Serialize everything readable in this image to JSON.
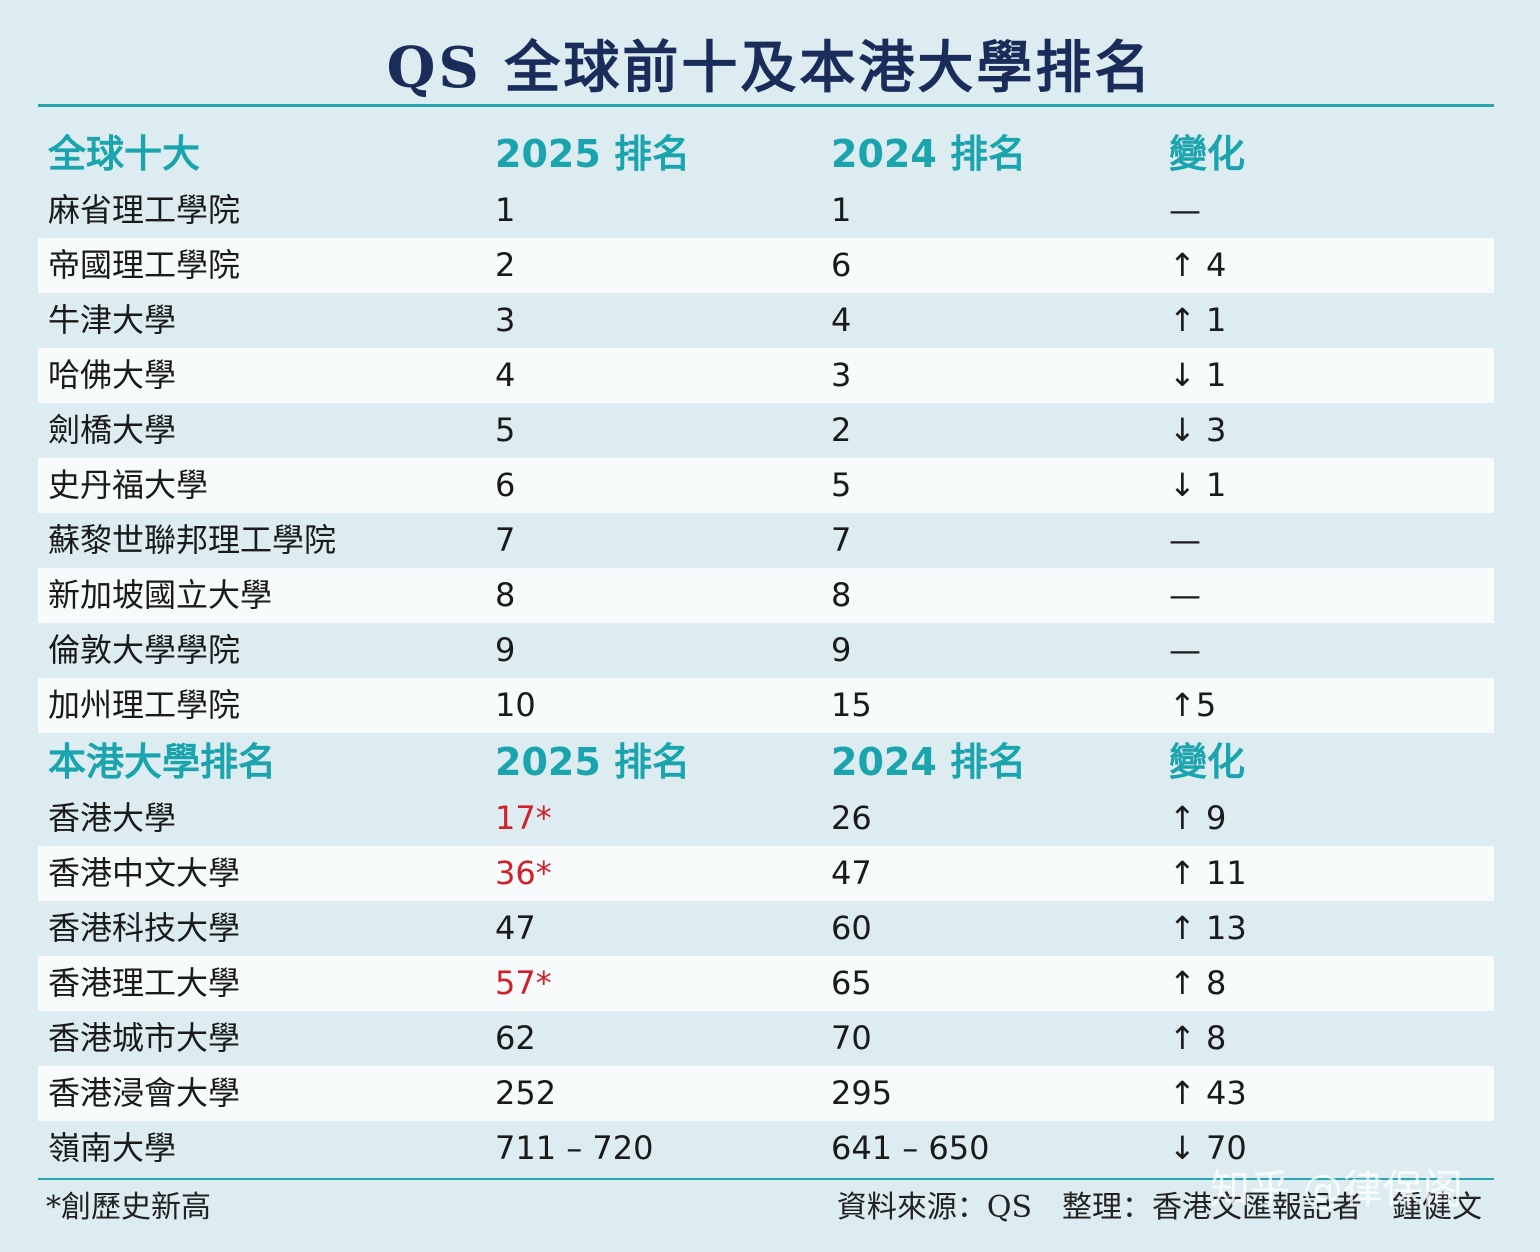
{
  "title": "QS 全球前十及本港大學排名",
  "global": {
    "headers": [
      "全球十大",
      "2025 排名",
      "2024 排名",
      "變化"
    ],
    "rows": [
      [
        "麻省理工學院",
        "1",
        "1",
        "—"
      ],
      [
        "帝國理工學院",
        "2",
        "6",
        "↑ 4"
      ],
      [
        "牛津大學",
        "3",
        "4",
        "↑ 1"
      ],
      [
        "哈佛大學",
        "4",
        "3",
        "↓ 1"
      ],
      [
        "劍橋大學",
        "5",
        "2",
        "↓ 3"
      ],
      [
        "史丹福大學",
        "6",
        "5",
        "↓ 1"
      ],
      [
        "蘇黎世聯邦理工學院",
        "7",
        "7",
        "—"
      ],
      [
        "新加坡國立大學",
        "8",
        "8",
        "—"
      ],
      [
        "倫敦大學學院",
        "9",
        "9",
        "—"
      ],
      [
        "加州理工學院",
        "10",
        "15",
        "↑5"
      ]
    ]
  },
  "hk": {
    "headers": [
      "本港大學排名",
      "2025 排名",
      "2024 排名",
      "變化"
    ],
    "rows": [
      [
        "香港大學",
        "17*",
        "26",
        "↑ 9"
      ],
      [
        "香港中文大學",
        "36*",
        "47",
        "↑ 11"
      ],
      [
        "香港科技大學",
        "47",
        "60",
        "↑ 13"
      ],
      [
        "香港理工大學",
        "57*",
        "65",
        "↑ 8"
      ],
      [
        "香港城市大學",
        "62",
        "70",
        "↑ 8"
      ],
      [
        "香港浸會大學",
        "252",
        "295",
        "↑ 43"
      ],
      [
        "嶺南大學",
        "711 – 720",
        "641 – 650",
        "↓ 70"
      ]
    ]
  },
  "footnote": "*創歷史新高",
  "source": {
    "data_source": "資料來源：QS",
    "compiled_by": "整理：香港文匯報記者　鍾健文"
  },
  "watermark": "知乎 @律保阁",
  "colors": {
    "background": "#dcecf0",
    "header_teal": "#1aa4ad",
    "title_navy": "#1a2c5a",
    "record_red": "#d1202a",
    "stripe": "#f7fbfc"
  }
}
